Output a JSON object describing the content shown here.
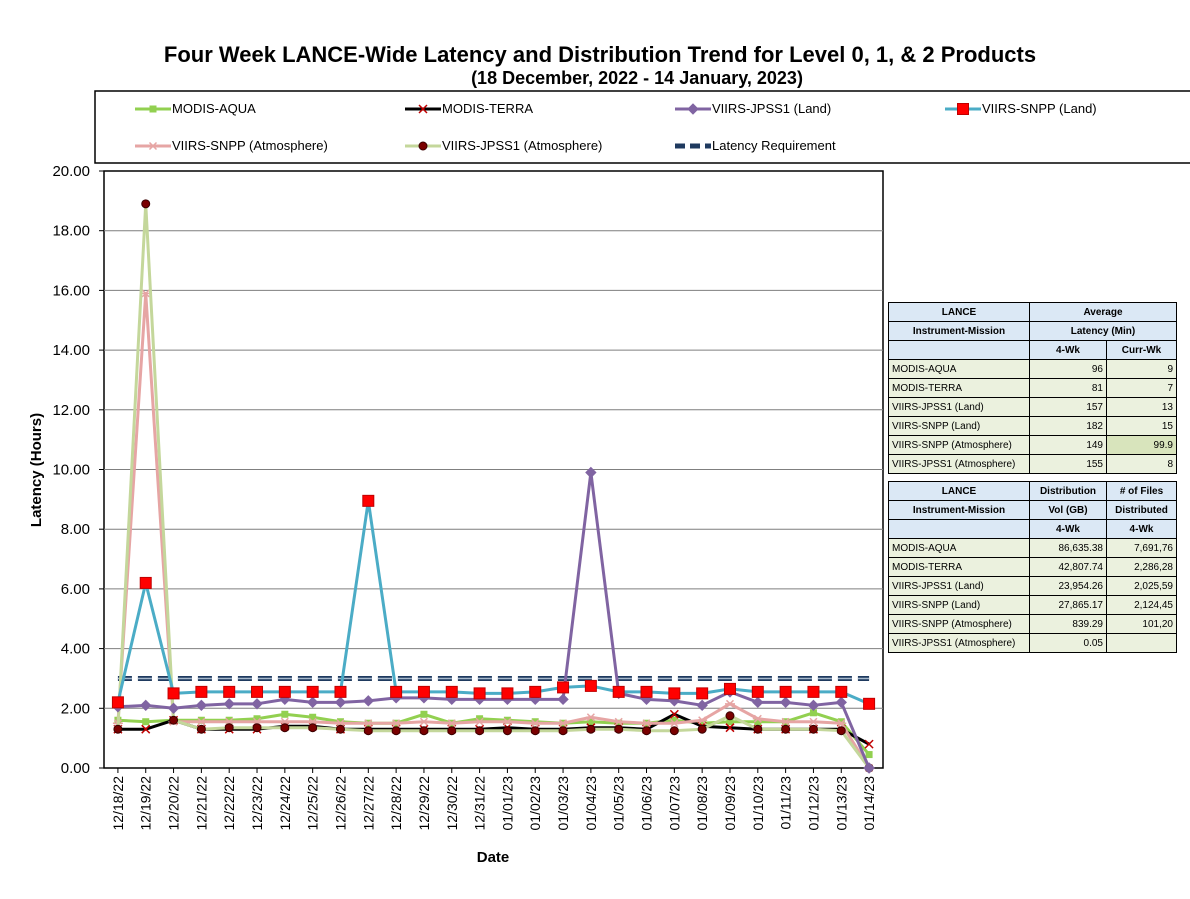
{
  "chart_data": {
    "type": "line",
    "title": "Four Week LANCE-Wide Latency and Distribution Trend for Level 0, 1, & 2 Products",
    "subtitle": "(18  December,  2022  -  14 January, 2023)",
    "xlabel": "Date",
    "ylabel": "Latency (Hours)",
    "ylim": [
      0,
      20
    ],
    "yticks": [
      "0.00",
      "2.00",
      "4.00",
      "6.00",
      "8.00",
      "10.00",
      "12.00",
      "14.00",
      "16.00",
      "18.00",
      "20.00"
    ],
    "grid": true,
    "legend_position": "top",
    "categories": [
      "12/18/22",
      "12/19/22",
      "12/20/22",
      "12/21/22",
      "12/22/22",
      "12/23/22",
      "12/24/22",
      "12/25/22",
      "12/26/22",
      "12/27/22",
      "12/28/22",
      "12/29/22",
      "12/30/22",
      "12/31/22",
      "01/01/23",
      "01/02/23",
      "01/03/23",
      "01/04/23",
      "01/05/23",
      "01/06/23",
      "01/07/23",
      "01/08/23",
      "01/09/23",
      "01/10/23",
      "01/11/23",
      "01/12/23",
      "01/13/23",
      "01/14/23"
    ],
    "series": [
      {
        "name": "MODIS-AQUA",
        "color": "#92d050",
        "marker": "square-small",
        "values": [
          1.6,
          1.55,
          1.6,
          1.6,
          1.6,
          1.65,
          1.8,
          1.7,
          1.55,
          1.5,
          1.5,
          1.8,
          1.5,
          1.65,
          1.6,
          1.55,
          1.5,
          1.55,
          1.5,
          1.5,
          1.6,
          1.5,
          1.55,
          1.55,
          1.55,
          1.85,
          1.55,
          0.45
        ]
      },
      {
        "name": "MODIS-TERRA",
        "color": "#000000",
        "marker": "x",
        "values": [
          1.3,
          1.3,
          1.6,
          1.3,
          1.3,
          1.3,
          1.4,
          1.4,
          1.3,
          1.3,
          1.3,
          1.3,
          1.3,
          1.3,
          1.35,
          1.3,
          1.3,
          1.35,
          1.35,
          1.3,
          1.8,
          1.4,
          1.35,
          1.3,
          1.3,
          1.3,
          1.3,
          0.8
        ]
      },
      {
        "name": "VIIRS-JPSS1 (Land)",
        "color": "#8064a2",
        "marker": "diamond",
        "values": [
          2.05,
          2.1,
          2.0,
          2.1,
          2.15,
          2.15,
          2.3,
          2.2,
          2.2,
          2.25,
          2.35,
          2.35,
          2.3,
          2.3,
          2.3,
          2.3,
          2.3,
          9.9,
          2.5,
          2.3,
          2.25,
          2.1,
          2.55,
          2.2,
          2.2,
          2.1,
          2.2,
          0.0
        ]
      },
      {
        "name": "VIIRS-SNPP (Land)",
        "color": "#4bacc6",
        "marker": "square",
        "values": [
          2.2,
          6.2,
          2.5,
          2.55,
          2.55,
          2.55,
          2.55,
          2.55,
          2.55,
          8.95,
          2.55,
          2.55,
          2.55,
          2.5,
          2.5,
          2.55,
          2.7,
          2.75,
          2.55,
          2.55,
          2.5,
          2.5,
          2.65,
          2.55,
          2.55,
          2.55,
          2.55,
          2.15
        ]
      },
      {
        "name": "VIIRS-SNPP (Atmosphere)",
        "color": "#e6a5a4",
        "marker": "asterisk",
        "values": [
          1.5,
          15.9,
          1.55,
          1.55,
          1.55,
          1.55,
          1.55,
          1.55,
          1.5,
          1.5,
          1.5,
          1.55,
          1.5,
          1.55,
          1.55,
          1.5,
          1.5,
          1.7,
          1.55,
          1.5,
          1.5,
          1.6,
          2.15,
          1.65,
          1.55,
          1.55,
          1.5,
          0.0
        ]
      },
      {
        "name": "VIIRS-JPSS1 (Atmosphere)",
        "color": "#c4d79b",
        "marker": "circle",
        "values": [
          1.3,
          18.9,
          1.6,
          1.3,
          1.35,
          1.35,
          1.35,
          1.35,
          1.3,
          1.25,
          1.25,
          1.25,
          1.25,
          1.25,
          1.25,
          1.25,
          1.25,
          1.3,
          1.3,
          1.25,
          1.25,
          1.3,
          1.75,
          1.3,
          1.3,
          1.3,
          1.25,
          0.0
        ]
      },
      {
        "name": "Latency Requirement",
        "color": "#1f3a5f",
        "marker": "none",
        "dash": true,
        "values": [
          3,
          3,
          3,
          3,
          3,
          3,
          3,
          3,
          3,
          3,
          3,
          3,
          3,
          3,
          3,
          3,
          3,
          3,
          3,
          3,
          3,
          3,
          3,
          3,
          3,
          3,
          3,
          3
        ]
      }
    ]
  },
  "latency_table": {
    "head1": "LANCE",
    "head2": "Instrument-Mission",
    "col_group_1": "Average",
    "col_group_2": "Latency (Min)",
    "sub1": "4-Wk",
    "sub2": "Curr-Wk",
    "rows": [
      {
        "name": "MODIS-AQUA",
        "wk4": "96",
        "curr": "9"
      },
      {
        "name": "MODIS-TERRA",
        "wk4": "81",
        "curr": "7"
      },
      {
        "name": "VIIRS-JPSS1 (Land)",
        "wk4": "157",
        "curr": "13"
      },
      {
        "name": "VIIRS-SNPP (Land)",
        "wk4": "182",
        "curr": "15"
      },
      {
        "name": "VIIRS-SNPP (Atmosphere)",
        "wk4": "149",
        "curr": "99.9"
      },
      {
        "name": "VIIRS-JPSS1 (Atmosphere)",
        "wk4": "155",
        "curr": "8"
      }
    ]
  },
  "distribution_table": {
    "head1": "LANCE",
    "head2": "Instrument-Mission",
    "col1_a": "Distribution",
    "col1_b": "Vol (GB)",
    "col2_a": "# of Files",
    "col2_b": "Distributed",
    "sub1": "4-Wk",
    "sub2": "4-Wk",
    "rows": [
      {
        "name": "MODIS-AQUA",
        "vol": "86,635.38",
        "files": "7,691,76"
      },
      {
        "name": "MODIS-TERRA",
        "vol": "42,807.74",
        "files": "2,286,28"
      },
      {
        "name": "VIIRS-JPSS1 (Land)",
        "vol": "23,954.26",
        "files": "2,025,59"
      },
      {
        "name": "VIIRS-SNPP (Land)",
        "vol": "27,865.17",
        "files": "2,124,45"
      },
      {
        "name": "VIIRS-SNPP (Atmosphere)",
        "vol": "839.29",
        "files": "101,20"
      },
      {
        "name": "VIIRS-JPSS1 (Atmosphere)",
        "vol": "0.05",
        "files": ""
      }
    ]
  }
}
